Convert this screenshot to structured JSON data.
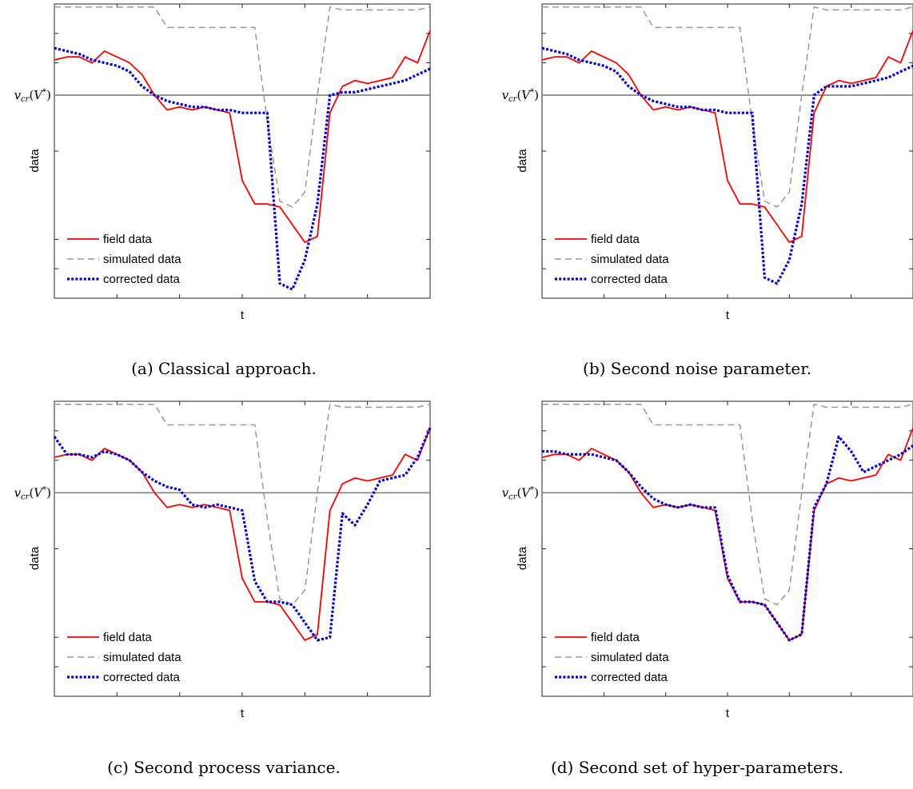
{
  "labels": {
    "ylabel": "data",
    "xlabel": "t"
  },
  "legend": {
    "field": "field data",
    "simulated": "simulated data",
    "corrected": "corrected data"
  },
  "colors": {
    "field": "#ff0000",
    "simulated": "#999999",
    "corrected": "#0000dd",
    "threshold": "#808080"
  },
  "chart_data": [
    {
      "type": "line",
      "caption": "(a) Classical approach.",
      "xlabel": "t",
      "ylabel": "data",
      "ytick_labels": [
        "v_cr(V*)"
      ],
      "xlim": [
        0,
        60
      ],
      "ylim": [
        0,
        100
      ],
      "threshold": 69,
      "x": [
        0,
        2,
        4,
        6,
        8,
        10,
        12,
        14,
        16,
        18,
        20,
        22,
        24,
        26,
        28,
        30,
        32,
        34,
        36,
        38,
        40,
        42,
        44,
        46,
        48,
        50,
        52,
        54,
        56,
        58,
        60
      ],
      "series": [
        {
          "name": "field data",
          "values": [
            81,
            82,
            82,
            80,
            84,
            82,
            80,
            76,
            69,
            64,
            65,
            64,
            65,
            64,
            63,
            40,
            32,
            32,
            31,
            25,
            19,
            21,
            63,
            72,
            74,
            73,
            74,
            75,
            82,
            80,
            91
          ]
        },
        {
          "name": "simulated data",
          "values": [
            99,
            99,
            99,
            99,
            99,
            99,
            99,
            99,
            99,
            92,
            92,
            92,
            92,
            92,
            92,
            92,
            92,
            60,
            33,
            31,
            36,
            69,
            99,
            98,
            98,
            98,
            98,
            98,
            98,
            98,
            99
          ]
        },
        {
          "name": "corrected data",
          "values": [
            85,
            84,
            83,
            81,
            80,
            79,
            77,
            72,
            69,
            67,
            66,
            65,
            65,
            64,
            64,
            63,
            63,
            63,
            5,
            3,
            13,
            32,
            69,
            70,
            70,
            71,
            72,
            73,
            74,
            76,
            78
          ]
        }
      ]
    },
    {
      "type": "line",
      "caption": "(b) Second noise parameter.",
      "xlabel": "t",
      "ylabel": "data",
      "ytick_labels": [
        "v_cr(V*)"
      ],
      "xlim": [
        0,
        60
      ],
      "ylim": [
        0,
        100
      ],
      "threshold": 69,
      "x": [
        0,
        2,
        4,
        6,
        8,
        10,
        12,
        14,
        16,
        18,
        20,
        22,
        24,
        26,
        28,
        30,
        32,
        34,
        36,
        38,
        40,
        42,
        44,
        46,
        48,
        50,
        52,
        54,
        56,
        58,
        60
      ],
      "series": [
        {
          "name": "field data",
          "values": [
            81,
            82,
            82,
            80,
            84,
            82,
            80,
            76,
            69,
            64,
            65,
            64,
            65,
            64,
            63,
            40,
            32,
            32,
            31,
            25,
            19,
            21,
            63,
            72,
            74,
            73,
            74,
            75,
            82,
            80,
            91
          ]
        },
        {
          "name": "simulated data",
          "values": [
            99,
            99,
            99,
            99,
            99,
            99,
            99,
            99,
            99,
            92,
            92,
            92,
            92,
            92,
            92,
            92,
            92,
            60,
            33,
            31,
            36,
            69,
            99,
            98,
            98,
            98,
            98,
            98,
            98,
            98,
            99
          ]
        },
        {
          "name": "corrected data",
          "values": [
            85,
            84,
            83,
            81,
            80,
            79,
            77,
            72,
            69,
            67,
            66,
            65,
            65,
            64,
            64,
            63,
            63,
            63,
            7,
            5,
            13,
            32,
            69,
            72,
            72,
            72,
            73,
            74,
            75,
            77,
            79
          ]
        }
      ]
    },
    {
      "type": "line",
      "caption": "(c) Second process variance.",
      "xlabel": "t",
      "ylabel": "data",
      "ytick_labels": [
        "v_cr(V*)"
      ],
      "xlim": [
        0,
        60
      ],
      "ylim": [
        0,
        100
      ],
      "threshold": 69,
      "x": [
        0,
        2,
        4,
        6,
        8,
        10,
        12,
        14,
        16,
        18,
        20,
        22,
        24,
        26,
        28,
        30,
        32,
        34,
        36,
        38,
        40,
        42,
        44,
        46,
        48,
        50,
        52,
        54,
        56,
        58,
        60
      ],
      "series": [
        {
          "name": "field data",
          "values": [
            81,
            82,
            82,
            80,
            84,
            82,
            80,
            76,
            69,
            64,
            65,
            64,
            65,
            64,
            63,
            40,
            32,
            32,
            31,
            25,
            19,
            21,
            63,
            72,
            74,
            73,
            74,
            75,
            82,
            80,
            91
          ]
        },
        {
          "name": "simulated data",
          "values": [
            99,
            99,
            99,
            99,
            99,
            99,
            99,
            99,
            99,
            92,
            92,
            92,
            92,
            92,
            92,
            92,
            92,
            60,
            33,
            31,
            36,
            69,
            99,
            98,
            98,
            98,
            98,
            98,
            98,
            98,
            99
          ]
        },
        {
          "name": "corrected data",
          "values": [
            88,
            82,
            82,
            81,
            83,
            82,
            80,
            76,
            73,
            71,
            70,
            65,
            64,
            65,
            64,
            63,
            39,
            32,
            32,
            31,
            25,
            19,
            20,
            62,
            58,
            65,
            73,
            74,
            75,
            81,
            91
          ]
        }
      ]
    },
    {
      "type": "line",
      "caption": "(d) Second set of hyper-parameters.",
      "xlabel": "t",
      "ylabel": "data",
      "ytick_labels": [
        "v_cr(V*)"
      ],
      "xlim": [
        0,
        60
      ],
      "ylim": [
        0,
        100
      ],
      "threshold": 69,
      "x": [
        0,
        2,
        4,
        6,
        8,
        10,
        12,
        14,
        16,
        18,
        20,
        22,
        24,
        26,
        28,
        30,
        32,
        34,
        36,
        38,
        40,
        42,
        44,
        46,
        48,
        50,
        52,
        54,
        56,
        58,
        60
      ],
      "series": [
        {
          "name": "field data",
          "values": [
            81,
            82,
            82,
            80,
            84,
            82,
            80,
            76,
            69,
            64,
            65,
            64,
            65,
            64,
            63,
            40,
            32,
            32,
            31,
            25,
            19,
            21,
            63,
            72,
            74,
            73,
            74,
            75,
            82,
            80,
            91
          ]
        },
        {
          "name": "simulated data",
          "values": [
            99,
            99,
            99,
            99,
            99,
            99,
            99,
            99,
            99,
            92,
            92,
            92,
            92,
            92,
            92,
            92,
            92,
            60,
            33,
            31,
            36,
            69,
            99,
            98,
            98,
            98,
            98,
            98,
            98,
            98,
            99
          ]
        },
        {
          "name": "corrected data",
          "values": [
            83,
            83,
            82,
            82,
            82,
            81,
            80,
            76,
            71,
            67,
            65,
            64,
            65,
            64,
            64,
            41,
            32,
            32,
            31,
            25,
            19,
            21,
            64,
            72,
            88,
            83,
            76,
            78,
            80,
            82,
            85
          ]
        }
      ]
    }
  ]
}
